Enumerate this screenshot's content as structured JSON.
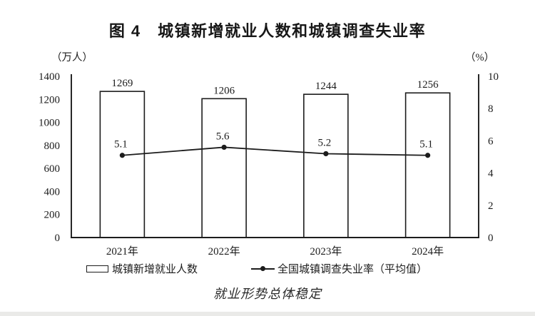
{
  "title": "图 4　城镇新增就业人数和城镇调查失业率",
  "caption": "就业形势总体稳定",
  "colors": {
    "ink": "#1c1c1c",
    "background": "#ffffff",
    "bar_fill": "#ffffff",
    "page_edge": "#eaeae8"
  },
  "chart_data": {
    "type": "bar",
    "subtype": "bar-line-combo",
    "categories": [
      "2021年",
      "2022年",
      "2023年",
      "2024年"
    ],
    "series": [
      {
        "name": "城镇新增就业人数",
        "type": "bar",
        "axis": "left",
        "values": [
          1269,
          1206,
          1244,
          1256
        ],
        "labels": [
          "1269",
          "1206",
          "1244",
          "1256"
        ]
      },
      {
        "name": "全国城镇调查失业率（平均值）",
        "type": "line",
        "axis": "right",
        "values": [
          5.1,
          5.6,
          5.2,
          5.1
        ],
        "labels": [
          "5.1",
          "5.6",
          "5.2",
          "5.1"
        ]
      }
    ],
    "left_axis": {
      "unit": "（万人）",
      "min": 0,
      "max": 1400,
      "tick_step": 200,
      "ticks": [
        1400,
        1200,
        1000,
        800,
        600,
        400,
        200,
        0
      ]
    },
    "right_axis": {
      "unit": "（%）",
      "min": 0,
      "max": 10,
      "tick_step": 2,
      "ticks": [
        10,
        8,
        6,
        4,
        2,
        0
      ]
    },
    "grid": false,
    "legend_position": "bottom"
  }
}
